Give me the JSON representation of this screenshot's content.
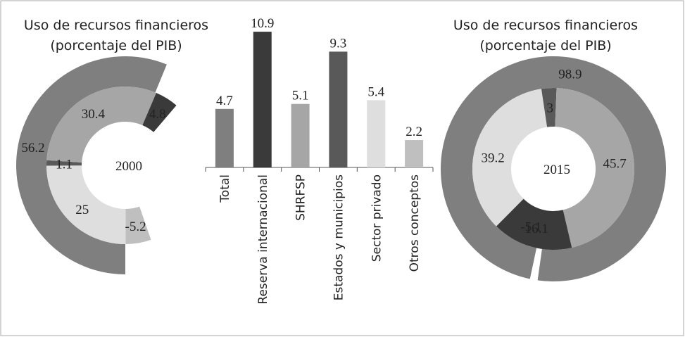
{
  "chart_data": [
    {
      "type": "donut",
      "title": [
        "Uso de recursos financieros",
        "(porcentaje del PIB)"
      ],
      "center_label": "2000",
      "total": 56.2,
      "total_color": "#7f7f7f",
      "values": [
        -5.2,
        25.0,
        1.1,
        30.4,
        4.8
      ],
      "colors": [
        "#bfbfbf",
        "#dedede",
        "#595959",
        "#a6a6a6",
        "#3a3a3a"
      ]
    },
    {
      "type": "bar",
      "categories": [
        "Total",
        "Reserva internacional",
        "SHRFSP",
        "Estados y municipios",
        "Sector privado",
        "Otros conceptos"
      ],
      "values": [
        4.7,
        10.9,
        5.1,
        9.3,
        5.4,
        2.2
      ],
      "colors": [
        "#7f7f7f",
        "#3a3a3a",
        "#a6a6a6",
        "#595959",
        "#dedede",
        "#bfbfbf"
      ]
    },
    {
      "type": "donut",
      "title": [
        "Uso de recursos financieros",
        "(porcentaje del PIB)"
      ],
      "center_label": "2015",
      "total": 98.9,
      "total_color": "#7f7f7f",
      "values": [
        -5.1,
        39.2,
        3.0,
        45.7,
        16.1
      ],
      "colors": [
        "#bfbfbf",
        "#dedede",
        "#595959",
        "#a6a6a6",
        "#3a3a3a"
      ]
    }
  ]
}
